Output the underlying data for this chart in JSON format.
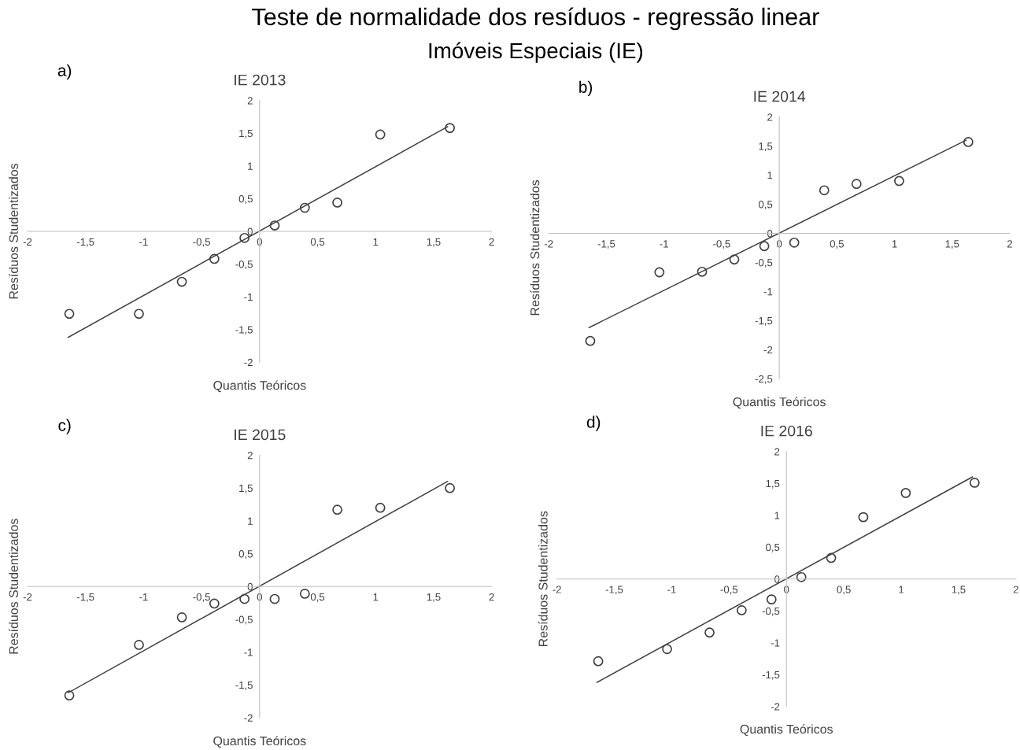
{
  "chart_data": [
    {
      "type": "scatter",
      "title": "IE 2013",
      "xlabel": "Quantis Teóricos",
      "ylabel": "Resíduos Studentizados",
      "annotations": [
        "Teste de normalidade dos resíduos - regressão linear",
        "Imóveis Especiais (IE)",
        "a)"
      ],
      "xlim": [
        -2,
        2
      ],
      "ylim": [
        -2,
        2
      ],
      "xticks": [
        -2,
        {
          "value": -1.5,
          "label": "-1,5"
        },
        -1,
        {
          "value": -0.5,
          "label": "-0,5"
        },
        0,
        {
          "value": 0.5,
          "label": "0,5"
        },
        1,
        {
          "value": 1.5,
          "label": "1,5"
        },
        2
      ],
      "yticks": [
        -2,
        {
          "value": -1.5,
          "label": "-1,5"
        },
        -1,
        {
          "value": -0.5,
          "label": "-0,5"
        },
        0,
        {
          "value": 0.5,
          "label": "0,5"
        },
        1,
        {
          "value": 1.5,
          "label": "1,5"
        },
        2
      ],
      "grid": false,
      "legend": false,
      "series": [
        {
          "marker": "circle",
          "color": "#404040",
          "x": [
            -1.64,
            -1.04,
            -0.67,
            -0.39,
            -0.13,
            0.13,
            0.39,
            0.67,
            1.04,
            1.64
          ],
          "values": [
            -1.26,
            -1.26,
            -0.77,
            -0.42,
            -0.1,
            0.09,
            0.36,
            0.44,
            1.48,
            1.58
          ]
        },
        {
          "type": "line",
          "color": "#404040",
          "x": [
            -1.65,
            1.62
          ],
          "values": [
            -1.62,
            1.6
          ]
        }
      ]
    },
    {
      "type": "scatter",
      "title": "IE 2014",
      "xlabel": "Quantis Teóricos",
      "ylabel": "Resíduos Studentizados",
      "annotations": [
        "b)"
      ],
      "xlim": [
        -2,
        2
      ],
      "ylim": [
        -2.5,
        2
      ],
      "xticks": [
        -2,
        {
          "value": -1.5,
          "label": "-1,5"
        },
        -1,
        {
          "value": -0.5,
          "label": "-0,5"
        },
        0,
        {
          "value": 0.5,
          "label": "0,5"
        },
        1,
        {
          "value": 1.5,
          "label": "1,5"
        },
        2
      ],
      "yticks": [
        {
          "value": -2.5,
          "label": "-2,5"
        },
        -2,
        {
          "value": -1.5,
          "label": "-1,5"
        },
        -1,
        {
          "value": -0.5,
          "label": "-0,5"
        },
        0,
        {
          "value": 0.5,
          "label": "0,5"
        },
        1,
        {
          "value": 1.5,
          "label": "1,5"
        },
        2
      ],
      "grid": false,
      "legend": false,
      "series": [
        {
          "marker": "circle",
          "color": "#404040",
          "x": [
            -1.64,
            -1.04,
            -0.67,
            -0.39,
            -0.13,
            0.13,
            0.39,
            0.67,
            1.04,
            1.64
          ],
          "values": [
            -1.85,
            -0.67,
            -0.66,
            -0.45,
            -0.22,
            -0.16,
            0.74,
            0.85,
            0.9,
            1.57
          ]
        },
        {
          "type": "line",
          "color": "#404040",
          "x": [
            -1.65,
            1.62
          ],
          "values": [
            -1.62,
            1.6
          ]
        }
      ]
    },
    {
      "type": "scatter",
      "title": "IE 2015",
      "xlabel": "Quantis Teóricos",
      "ylabel": "Resíduos Studentizados",
      "annotations": [
        "c)"
      ],
      "xlim": [
        -2,
        2
      ],
      "ylim": [
        -2,
        2
      ],
      "xticks": [
        -2,
        {
          "value": -1.5,
          "label": "-1,5"
        },
        -1,
        {
          "value": -0.5,
          "label": "-0,5"
        },
        0,
        {
          "value": 0.5,
          "label": "0,5"
        },
        1,
        {
          "value": 1.5,
          "label": "1,5"
        },
        2
      ],
      "yticks": [
        -2,
        {
          "value": -1.5,
          "label": "-1,5"
        },
        -1,
        {
          "value": -0.5,
          "label": "-0,5"
        },
        0,
        {
          "value": 0.5,
          "label": "0,5"
        },
        1,
        {
          "value": 1.5,
          "label": "1,5"
        },
        2
      ],
      "grid": false,
      "legend": false,
      "series": [
        {
          "marker": "circle",
          "color": "#404040",
          "x": [
            -1.64,
            -1.04,
            -0.67,
            -0.39,
            -0.13,
            0.13,
            0.39,
            0.67,
            1.04,
            1.64
          ],
          "values": [
            -1.66,
            -0.89,
            -0.47,
            -0.26,
            -0.19,
            -0.19,
            -0.11,
            1.17,
            1.2,
            1.5
          ]
        },
        {
          "type": "line",
          "color": "#404040",
          "x": [
            -1.65,
            1.62
          ],
          "values": [
            -1.62,
            1.6
          ]
        }
      ]
    },
    {
      "type": "scatter",
      "title": "IE 2016",
      "xlabel": "Quantis Teóricos",
      "ylabel": "Resíduos Studentizados",
      "annotations": [
        "d)"
      ],
      "xlim": [
        -2,
        2
      ],
      "ylim": [
        -2,
        2
      ],
      "xticks": [
        -2,
        {
          "value": -1.5,
          "label": "-1,5"
        },
        -1,
        {
          "value": -0.5,
          "label": "-0,5"
        },
        0,
        {
          "value": 0.5,
          "label": "0,5"
        },
        1,
        {
          "value": 1.5,
          "label": "1,5"
        },
        2
      ],
      "yticks": [
        -2,
        {
          "value": -1.5,
          "label": "-1,5"
        },
        -1,
        {
          "value": -0.5,
          "label": "-0,5"
        },
        0,
        {
          "value": 0.5,
          "label": "0,5"
        },
        1,
        {
          "value": 1.5,
          "label": "1,5"
        },
        2
      ],
      "grid": false,
      "legend": false,
      "series": [
        {
          "marker": "circle",
          "color": "#404040",
          "x": [
            -1.64,
            -1.04,
            -0.67,
            -0.39,
            -0.13,
            0.13,
            0.39,
            0.67,
            1.04,
            1.64
          ],
          "values": [
            -1.29,
            -1.1,
            -0.84,
            -0.49,
            -0.32,
            0.03,
            0.33,
            0.97,
            1.35,
            1.51
          ]
        },
        {
          "type": "line",
          "color": "#404040",
          "x": [
            -1.65,
            1.62
          ],
          "values": [
            -1.62,
            1.6
          ]
        }
      ]
    }
  ]
}
